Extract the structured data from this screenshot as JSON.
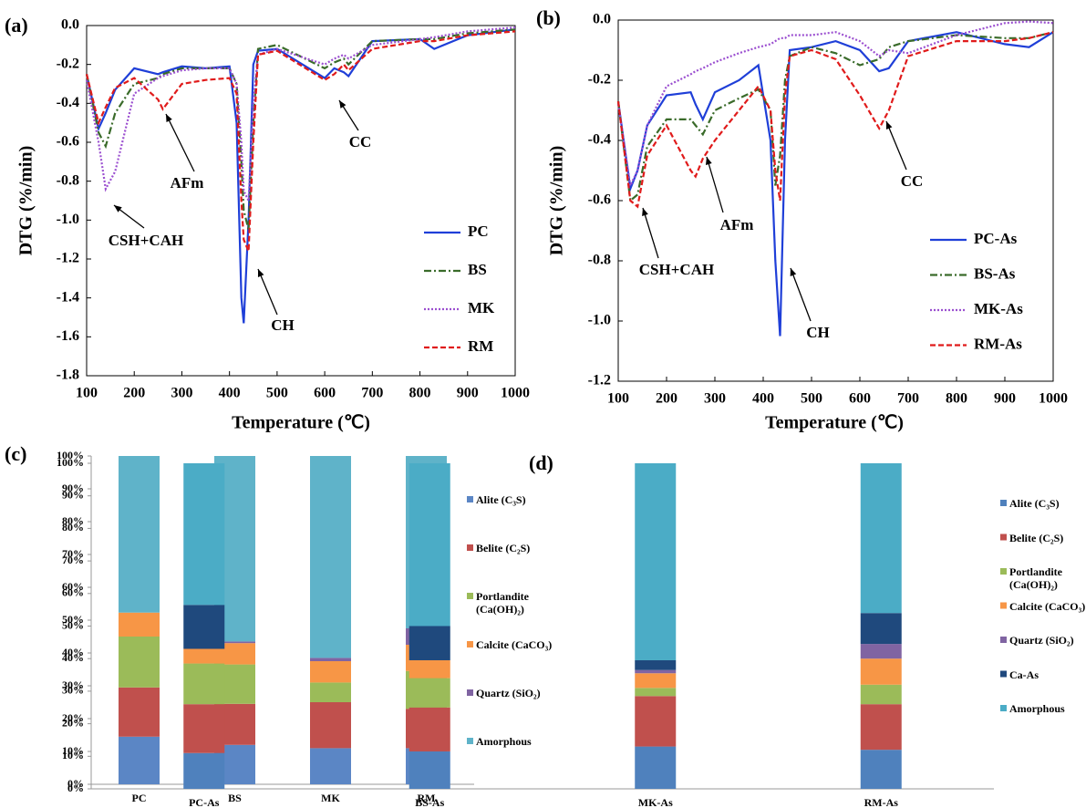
{
  "chart_data": [
    {
      "type": "line",
      "panel_label": "(a)",
      "ylabel": "DTG (%/min)",
      "xlabel": "Temperature (℃)",
      "x": [
        100,
        125,
        140,
        160,
        200,
        250,
        260,
        300,
        350,
        400,
        415,
        425,
        430,
        440,
        450,
        460,
        500,
        600,
        620,
        640,
        650,
        700,
        800,
        830,
        900,
        1000
      ],
      "series": [
        {
          "name": "PC",
          "color": "#1f3fd8",
          "style": "solid",
          "values": [
            -0.25,
            -0.53,
            -0.45,
            -0.33,
            -0.22,
            -0.25,
            -0.24,
            -0.21,
            -0.22,
            -0.21,
            -0.5,
            -1.4,
            -1.53,
            -1.0,
            -0.2,
            -0.13,
            -0.12,
            -0.27,
            -0.22,
            -0.24,
            -0.26,
            -0.08,
            -0.07,
            -0.12,
            -0.05,
            -0.02
          ]
        },
        {
          "name": "BS",
          "color": "#3a6b2a",
          "style": "dashdot",
          "values": [
            -0.25,
            -0.55,
            -0.62,
            -0.45,
            -0.3,
            -0.27,
            -0.25,
            -0.22,
            -0.22,
            -0.22,
            -0.3,
            -0.7,
            -0.95,
            -1.05,
            -0.5,
            -0.12,
            -0.1,
            -0.22,
            -0.19,
            -0.17,
            -0.2,
            -0.08,
            -0.07,
            -0.07,
            -0.04,
            -0.02
          ]
        },
        {
          "name": "MK",
          "color": "#9b4fd0",
          "style": "dotted",
          "values": [
            -0.28,
            -0.6,
            -0.84,
            -0.75,
            -0.35,
            -0.27,
            -0.26,
            -0.23,
            -0.22,
            -0.22,
            -0.3,
            -0.6,
            -0.85,
            -0.9,
            -0.4,
            -0.15,
            -0.12,
            -0.2,
            -0.17,
            -0.15,
            -0.17,
            -0.1,
            -0.07,
            -0.06,
            -0.03,
            -0.01
          ]
        },
        {
          "name": "RM",
          "color": "#e01b1b",
          "style": "dashed",
          "values": [
            -0.25,
            -0.5,
            -0.42,
            -0.32,
            -0.27,
            -0.38,
            -0.43,
            -0.3,
            -0.28,
            -0.27,
            -0.35,
            -0.9,
            -1.1,
            -1.16,
            -0.6,
            -0.15,
            -0.13,
            -0.28,
            -0.25,
            -0.2,
            -0.23,
            -0.12,
            -0.08,
            -0.08,
            -0.05,
            -0.03
          ]
        }
      ],
      "xlim": [
        100,
        1000
      ],
      "xticks": [
        100,
        200,
        300,
        400,
        500,
        600,
        700,
        800,
        900,
        1000
      ],
      "ylim": [
        -1.8,
        0
      ],
      "yticks": [
        {
          "value": 0,
          "label": "0.0"
        },
        -0.2,
        -0.4,
        -0.6,
        -0.8,
        {
          "value": -1,
          "label": "-1.0"
        },
        -1.2,
        -1.4,
        -1.6,
        -1.8
      ],
      "legend": "lower right",
      "annotations": [
        "CSH+CAH",
        "AFm",
        "CH",
        "CC"
      ]
    },
    {
      "type": "line",
      "panel_label": "(b)",
      "ylabel": "DTG (%/min)",
      "xlabel": "Temperature (℃)",
      "x": [
        100,
        125,
        140,
        160,
        200,
        250,
        260,
        275,
        300,
        350,
        390,
        415,
        425,
        435,
        445,
        455,
        500,
        550,
        600,
        640,
        660,
        700,
        800,
        900,
        950,
        1000
      ],
      "series": [
        {
          "name": "PC-As",
          "color": "#1f3fd8",
          "style": "solid",
          "values": [
            -0.27,
            -0.56,
            -0.5,
            -0.35,
            -0.25,
            -0.24,
            -0.28,
            -0.33,
            -0.24,
            -0.2,
            -0.15,
            -0.4,
            -0.8,
            -1.05,
            -0.4,
            -0.1,
            -0.09,
            -0.07,
            -0.1,
            -0.17,
            -0.16,
            -0.07,
            -0.04,
            -0.08,
            -0.09,
            -0.04
          ]
        },
        {
          "name": "BS-As",
          "color": "#3a6b2a",
          "style": "dashdot",
          "values": [
            -0.27,
            -0.6,
            -0.58,
            -0.42,
            -0.33,
            -0.33,
            -0.35,
            -0.38,
            -0.3,
            -0.26,
            -0.23,
            -0.3,
            -0.55,
            -0.45,
            -0.2,
            -0.12,
            -0.09,
            -0.11,
            -0.15,
            -0.13,
            -0.09,
            -0.07,
            -0.05,
            -0.06,
            -0.06,
            -0.04
          ]
        },
        {
          "name": "MK-As",
          "color": "#9b4fd0",
          "style": "dotted",
          "values": [
            -0.28,
            -0.55,
            -0.5,
            -0.35,
            -0.22,
            -0.18,
            -0.17,
            -0.16,
            -0.14,
            -0.11,
            -0.09,
            -0.08,
            -0.07,
            -0.06,
            -0.06,
            -0.05,
            -0.05,
            -0.04,
            -0.07,
            -0.12,
            -0.1,
            -0.11,
            -0.05,
            -0.01,
            -0.005,
            -0.01
          ]
        },
        {
          "name": "RM-As",
          "color": "#e01b1b",
          "style": "dashed",
          "values": [
            -0.27,
            -0.6,
            -0.62,
            -0.45,
            -0.35,
            -0.5,
            -0.52,
            -0.46,
            -0.4,
            -0.3,
            -0.22,
            -0.3,
            -0.5,
            -0.6,
            -0.25,
            -0.12,
            -0.1,
            -0.13,
            -0.25,
            -0.36,
            -0.3,
            -0.12,
            -0.07,
            -0.07,
            -0.06,
            -0.04
          ]
        }
      ],
      "xlim": [
        100,
        1000
      ],
      "xticks": [
        100,
        200,
        300,
        400,
        500,
        600,
        700,
        800,
        900,
        1000
      ],
      "ylim": [
        -1.2,
        0
      ],
      "yticks": [
        {
          "value": 0,
          "label": "0.0"
        },
        -0.2,
        -0.4,
        -0.6,
        -0.8,
        {
          "value": -1,
          "label": "-1.0"
        },
        -1.2
      ],
      "legend": "lower right",
      "annotations": [
        "CSH+CAH",
        "AFm",
        "CH",
        "CC"
      ]
    },
    {
      "type": "stacked_bar",
      "panel_label": "(c)",
      "categories": [
        "PC",
        "BS",
        "MK",
        "RM"
      ],
      "series": [
        {
          "name": "Alite (C₃S)",
          "color": "#5b86c5",
          "values": [
            14.5,
            12,
            11,
            11
          ]
        },
        {
          "name": "Belite (C₂S)",
          "color": "#c0504d",
          "values": [
            15,
            12.5,
            14,
            12
          ]
        },
        {
          "name": "Portlandite (Ca(OH)₂)",
          "color": "#9bbb59",
          "values": [
            15.5,
            12,
            6,
            11.5
          ]
        },
        {
          "name": "Calcite (CaCO₃)",
          "color": "#f79646",
          "values": [
            7.3,
            6.5,
            6.5,
            8
          ]
        },
        {
          "name": "Quartz (SiO₂)",
          "color": "#8064a2",
          "values": [
            0,
            0.5,
            1,
            5
          ]
        },
        {
          "name": "Amorphous",
          "color": "#5fb3c9",
          "values": [
            47.7,
            56.5,
            61.5,
            52.5
          ]
        }
      ],
      "ylim": [
        0,
        100
      ],
      "yticks": [
        {
          "value": 0,
          "label": "0%"
        },
        {
          "value": 10,
          "label": "10%"
        },
        {
          "value": 20,
          "label": "20%"
        },
        {
          "value": 30,
          "label": "30%"
        },
        {
          "value": 40,
          "label": "40%"
        },
        {
          "value": 50,
          "label": "50%"
        },
        {
          "value": 60,
          "label": "60%"
        },
        {
          "value": 70,
          "label": "70%"
        },
        {
          "value": 80,
          "label": "80%"
        },
        {
          "value": 90,
          "label": "90%"
        },
        {
          "value": 100,
          "label": "100%"
        }
      ]
    },
    {
      "type": "stacked_bar",
      "panel_label": "(d)",
      "categories": [
        "PC-As",
        "BS-As",
        "MK-As",
        "RM-As"
      ],
      "series": [
        {
          "name": "Alite (C₃S)",
          "color": "#4f81bd",
          "values": [
            11,
            11.5,
            13,
            12
          ]
        },
        {
          "name": "Belite (C₂S)",
          "color": "#c0504d",
          "values": [
            15,
            13.5,
            15.5,
            14
          ]
        },
        {
          "name": "Portlandite (Ca(OH)₂)",
          "color": "#9bbb59",
          "values": [
            12.5,
            9,
            2.5,
            6
          ]
        },
        {
          "name": "Calcite (CaCO₃)",
          "color": "#f79646",
          "values": [
            4.5,
            5.5,
            4.5,
            8
          ]
        },
        {
          "name": "Quartz (SiO₂)",
          "color": "#8064a2",
          "values": [
            0,
            0,
            1,
            4.5
          ]
        },
        {
          "name": "Ca-As",
          "color": "#1f497d",
          "values": [
            13.5,
            10.5,
            3,
            9.5
          ]
        },
        {
          "name": "Amorphous",
          "color": "#4bacc6",
          "values": [
            43.5,
            50,
            60.5,
            46
          ]
        }
      ],
      "ylim": [
        0,
        100
      ],
      "yticks": [
        {
          "value": 0,
          "label": "0%"
        },
        {
          "value": 10,
          "label": "10%"
        },
        {
          "value": 20,
          "label": "20%"
        },
        {
          "value": 30,
          "label": "30%"
        },
        {
          "value": 40,
          "label": "40%"
        },
        {
          "value": 50,
          "label": "50%"
        },
        {
          "value": 60,
          "label": "60%"
        },
        {
          "value": 70,
          "label": "70%"
        },
        {
          "value": 80,
          "label": "80%"
        },
        {
          "value": 90,
          "label": "90%"
        },
        {
          "value": 100,
          "label": "100%"
        }
      ]
    }
  ]
}
